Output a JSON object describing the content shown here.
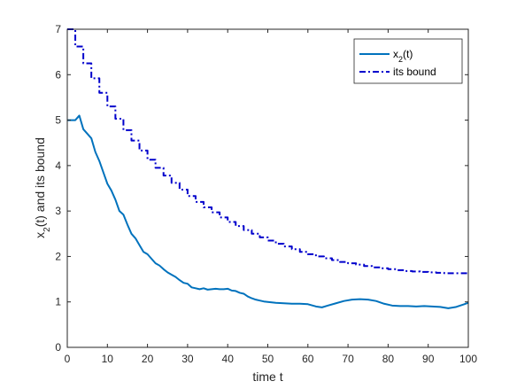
{
  "chart_data": {
    "type": "line",
    "xlabel_main": "time t",
    "ylabel_pre": "x",
    "ylabel_sub": "2",
    "ylabel_post": "(t) and its bound",
    "xlim": [
      0,
      100
    ],
    "ylim": [
      0,
      7
    ],
    "xticks": [
      "0",
      "10",
      "20",
      "30",
      "40",
      "50",
      "60",
      "70",
      "80",
      "90",
      "100"
    ],
    "yticks": [
      "0",
      "1",
      "2",
      "3",
      "4",
      "5",
      "6",
      "7"
    ],
    "grid": false,
    "legend_position": "top-right",
    "series": [
      {
        "name_pre": "x",
        "name_sub": "2",
        "name_post": "(t)",
        "color": "#0072BD",
        "style": "solid",
        "x": [
          0,
          1,
          2,
          3,
          4,
          5,
          6,
          7,
          8,
          9,
          10,
          11,
          12,
          13,
          14,
          15,
          16,
          17,
          18,
          19,
          20,
          21,
          22,
          23,
          24,
          25,
          26,
          27,
          28,
          29,
          30,
          31,
          32,
          33,
          34,
          35,
          36,
          37,
          38,
          39,
          40,
          41,
          42,
          43,
          44,
          45,
          46,
          47,
          48,
          49,
          50,
          52,
          54,
          56,
          58,
          60,
          62,
          63.5,
          65,
          67,
          69,
          71,
          73,
          75,
          77,
          79,
          81,
          83,
          85,
          87,
          89,
          91,
          93,
          95,
          97,
          99,
          100
        ],
        "y": [
          5.0,
          5.0,
          5.0,
          5.1,
          4.8,
          4.7,
          4.6,
          4.3,
          4.1,
          3.85,
          3.6,
          3.45,
          3.25,
          3.0,
          2.92,
          2.7,
          2.5,
          2.4,
          2.25,
          2.1,
          2.05,
          1.95,
          1.85,
          1.8,
          1.72,
          1.65,
          1.6,
          1.55,
          1.48,
          1.42,
          1.4,
          1.32,
          1.3,
          1.28,
          1.3,
          1.27,
          1.28,
          1.29,
          1.28,
          1.28,
          1.29,
          1.25,
          1.24,
          1.2,
          1.18,
          1.12,
          1.08,
          1.05,
          1.03,
          1.01,
          1.0,
          0.98,
          0.97,
          0.96,
          0.96,
          0.95,
          0.9,
          0.88,
          0.92,
          0.97,
          1.02,
          1.05,
          1.06,
          1.05,
          1.02,
          0.96,
          0.92,
          0.91,
          0.91,
          0.9,
          0.91,
          0.9,
          0.89,
          0.86,
          0.89,
          0.95,
          0.98
        ]
      },
      {
        "name": "its bound",
        "color": "#0000CC",
        "style": "dashdot",
        "step": true,
        "x": [
          0,
          2,
          4,
          6,
          8,
          10,
          12,
          14,
          16,
          18,
          20,
          22,
          24,
          26,
          28,
          30,
          32,
          34,
          36,
          38,
          40,
          42,
          44,
          46,
          48,
          50,
          52,
          54,
          56,
          58,
          60,
          62,
          64,
          66,
          68,
          70,
          72,
          74,
          76,
          78,
          80,
          82,
          84,
          86,
          88,
          90,
          92,
          94,
          96,
          98,
          100
        ],
        "y": [
          7.0,
          6.62,
          6.25,
          5.92,
          5.6,
          5.3,
          5.03,
          4.78,
          4.55,
          4.33,
          4.13,
          3.95,
          3.78,
          3.62,
          3.47,
          3.33,
          3.2,
          3.08,
          2.97,
          2.86,
          2.76,
          2.67,
          2.58,
          2.5,
          2.42,
          2.35,
          2.28,
          2.22,
          2.16,
          2.1,
          2.05,
          2.0,
          1.96,
          1.92,
          1.88,
          1.85,
          1.82,
          1.79,
          1.76,
          1.74,
          1.72,
          1.7,
          1.68,
          1.67,
          1.66,
          1.65,
          1.64,
          1.63,
          1.63,
          1.63,
          1.63
        ]
      }
    ]
  }
}
